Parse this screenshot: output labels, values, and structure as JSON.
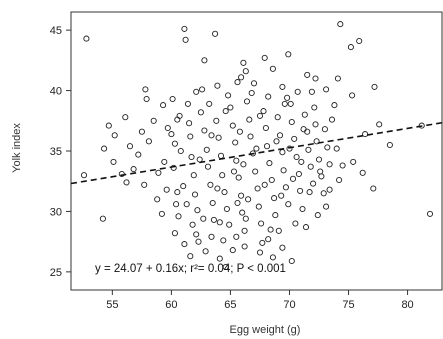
{
  "chart_data": {
    "type": "scatter",
    "xlabel": "Egg weight (g)",
    "ylabel": "Yolk index",
    "xlim": [
      51.5,
      83
    ],
    "ylim": [
      23.5,
      46.5
    ],
    "x_ticks": [
      55,
      60,
      65,
      70,
      75,
      80
    ],
    "y_ticks": [
      25,
      30,
      35,
      40,
      45
    ],
    "grid": false,
    "legend": "none",
    "marker": "open-circle",
    "trendline": {
      "style": "dashed",
      "intercept": 24.07,
      "slope": 0.16,
      "equation_text": "y = 24.07 + 0.16x; r²= 0.04; P < 0.001"
    },
    "colors": {
      "marker_stroke": "#222222",
      "trendline": "#111111",
      "axis": "#333333"
    },
    "series": [
      {
        "points": [
          [
            52.8,
            44.3
          ],
          [
            61.1,
            45.1
          ],
          [
            61.2,
            44.2
          ],
          [
            63.7,
            44.7
          ],
          [
            74.3,
            45.5
          ],
          [
            75.9,
            44.1
          ],
          [
            75.2,
            43.6
          ],
          [
            69.9,
            43.0
          ],
          [
            67.9,
            42.7
          ],
          [
            66.1,
            42.3
          ],
          [
            62.8,
            42.5
          ],
          [
            71.5,
            41.3
          ],
          [
            72.2,
            41.0
          ],
          [
            74.1,
            41.0
          ],
          [
            77.2,
            40.3
          ],
          [
            66.3,
            41.6
          ],
          [
            57.8,
            40.1
          ],
          [
            57.9,
            39.3
          ],
          [
            59.3,
            38.8
          ],
          [
            60.1,
            39.3
          ],
          [
            62.1,
            39.9
          ],
          [
            63.9,
            40.4
          ],
          [
            65.6,
            40.7
          ],
          [
            69.4,
            40.3
          ],
          [
            73.1,
            40.1
          ],
          [
            75.3,
            39.6
          ],
          [
            54.7,
            37.1
          ],
          [
            55.2,
            36.3
          ],
          [
            56.5,
            35.4
          ],
          [
            54.3,
            35.2
          ],
          [
            55.1,
            34.1
          ],
          [
            56.8,
            33.5
          ],
          [
            55.8,
            33.1
          ],
          [
            56.2,
            32.4
          ],
          [
            54.2,
            29.4
          ],
          [
            52.6,
            33.0
          ],
          [
            57.7,
            32.2
          ],
          [
            58.8,
            31.0
          ],
          [
            59.2,
            29.8
          ],
          [
            59.4,
            34.1
          ],
          [
            58.1,
            35.8
          ],
          [
            59.7,
            36.9
          ],
          [
            60.5,
            37.6
          ],
          [
            60.3,
            35.6
          ],
          [
            60.2,
            33.6
          ],
          [
            60.5,
            31.6
          ],
          [
            60.6,
            29.6
          ],
          [
            60.3,
            28.2
          ],
          [
            61.1,
            27.3
          ],
          [
            61.6,
            26.3
          ],
          [
            62.3,
            27.5
          ],
          [
            62.9,
            26.7
          ],
          [
            63.4,
            27.9
          ],
          [
            64.1,
            26.1
          ],
          [
            64.6,
            25.4
          ],
          [
            65.2,
            26.8
          ],
          [
            66.2,
            27.1
          ],
          [
            67.5,
            26.6
          ],
          [
            68.2,
            27.7
          ],
          [
            68.6,
            26.2
          ],
          [
            69.1,
            28.4
          ],
          [
            70.5,
            29.0
          ],
          [
            70.2,
            25.9
          ],
          [
            71.4,
            28.7
          ],
          [
            72.4,
            29.7
          ],
          [
            73.4,
            31.8
          ],
          [
            74.2,
            32.6
          ],
          [
            75.4,
            34.1
          ],
          [
            76.2,
            33.2
          ],
          [
            77.1,
            31.9
          ],
          [
            76.4,
            36.4
          ],
          [
            77.6,
            37.2
          ],
          [
            78.5,
            35.5
          ],
          [
            81.2,
            37.1
          ],
          [
            81.9,
            29.8
          ],
          [
            61.6,
            36.2
          ],
          [
            61.7,
            34.5
          ],
          [
            61.9,
            33.0
          ],
          [
            62.0,
            31.4
          ],
          [
            62.2,
            30.1
          ],
          [
            62.5,
            38.2
          ],
          [
            62.8,
            36.7
          ],
          [
            63.0,
            35.1
          ],
          [
            63.1,
            33.7
          ],
          [
            63.3,
            32.2
          ],
          [
            63.5,
            30.7
          ],
          [
            63.6,
            29.3
          ],
          [
            63.8,
            37.5
          ],
          [
            64.0,
            36.1
          ],
          [
            64.2,
            34.6
          ],
          [
            64.3,
            33.0
          ],
          [
            64.5,
            31.6
          ],
          [
            64.7,
            30.2
          ],
          [
            64.9,
            28.9
          ],
          [
            65.0,
            38.6
          ],
          [
            65.2,
            37.1
          ],
          [
            65.4,
            35.7
          ],
          [
            65.5,
            34.2
          ],
          [
            65.7,
            32.8
          ],
          [
            65.9,
            31.3
          ],
          [
            66.0,
            29.9
          ],
          [
            66.2,
            28.4
          ],
          [
            66.4,
            39.1
          ],
          [
            66.6,
            37.6
          ],
          [
            66.7,
            36.2
          ],
          [
            66.9,
            34.8
          ],
          [
            67.1,
            33.3
          ],
          [
            67.3,
            31.9
          ],
          [
            67.4,
            30.4
          ],
          [
            67.6,
            29.0
          ],
          [
            67.8,
            38.3
          ],
          [
            68.0,
            36.9
          ],
          [
            68.1,
            35.4
          ],
          [
            68.3,
            34.0
          ],
          [
            68.5,
            32.6
          ],
          [
            68.7,
            31.1
          ],
          [
            68.8,
            29.7
          ],
          [
            69.0,
            37.8
          ],
          [
            69.2,
            36.3
          ],
          [
            69.4,
            34.9
          ],
          [
            69.5,
            33.4
          ],
          [
            69.7,
            32.0
          ],
          [
            69.9,
            30.6
          ],
          [
            70.1,
            38.9
          ],
          [
            70.2,
            37.4
          ],
          [
            70.4,
            36.0
          ],
          [
            70.6,
            34.5
          ],
          [
            70.8,
            33.1
          ],
          [
            70.9,
            31.7
          ],
          [
            71.1,
            30.2
          ],
          [
            71.3,
            38.0
          ],
          [
            71.5,
            36.6
          ],
          [
            71.6,
            35.1
          ],
          [
            71.8,
            33.7
          ],
          [
            72.0,
            32.3
          ],
          [
            72.2,
            37.2
          ],
          [
            72.3,
            35.8
          ],
          [
            72.5,
            34.3
          ],
          [
            72.7,
            32.9
          ],
          [
            72.9,
            31.5
          ],
          [
            73.0,
            36.8
          ],
          [
            73.2,
            35.3
          ],
          [
            73.4,
            33.9
          ],
          [
            60.8,
            35.0
          ],
          [
            61.0,
            32.1
          ],
          [
            61.3,
            30.6
          ],
          [
            61.4,
            38.9
          ],
          [
            61.8,
            28.9
          ],
          [
            62.4,
            34.3
          ],
          [
            62.7,
            29.4
          ],
          [
            63.2,
            38.9
          ],
          [
            63.9,
            31.9
          ],
          [
            64.4,
            27.6
          ],
          [
            64.8,
            39.6
          ],
          [
            65.3,
            33.3
          ],
          [
            65.6,
            30.7
          ],
          [
            65.8,
            36.6
          ],
          [
            66.1,
            33.9
          ],
          [
            66.5,
            31.0
          ],
          [
            66.8,
            39.8
          ],
          [
            67.2,
            35.2
          ],
          [
            67.5,
            37.9
          ],
          [
            67.9,
            32.2
          ],
          [
            68.2,
            39.5
          ],
          [
            68.4,
            28.5
          ],
          [
            68.9,
            35.8
          ],
          [
            69.3,
            31.3
          ],
          [
            69.6,
            38.9
          ],
          [
            70.0,
            35.2
          ],
          [
            70.3,
            32.7
          ],
          [
            70.7,
            39.9
          ],
          [
            71.0,
            34.1
          ],
          [
            71.2,
            36.8
          ],
          [
            71.7,
            31.6
          ],
          [
            72.1,
            38.6
          ],
          [
            72.6,
            33.3
          ],
          [
            73.1,
            30.4
          ],
          [
            73.6,
            37.6
          ],
          [
            74.0,
            35.2
          ],
          [
            74.5,
            33.8
          ],
          [
            58.5,
            37.5
          ],
          [
            58.9,
            33.2
          ],
          [
            59.6,
            31.8
          ],
          [
            60.0,
            36.4
          ],
          [
            60.4,
            30.6
          ],
          [
            60.7,
            37.9
          ],
          [
            61.5,
            37.3
          ],
          [
            62.6,
            40.1
          ],
          [
            63.4,
            36.3
          ],
          [
            64.6,
            38.3
          ],
          [
            65.9,
            41.1
          ],
          [
            67.0,
            40.6
          ],
          [
            68.6,
            41.8
          ],
          [
            69.8,
            39.4
          ],
          [
            71.9,
            39.9
          ],
          [
            73.8,
            38.8
          ],
          [
            57.2,
            34.7
          ],
          [
            57.5,
            36.6
          ],
          [
            56.1,
            37.8
          ],
          [
            66.3,
            29.4
          ],
          [
            67.7,
            27.4
          ],
          [
            64.1,
            29.1
          ],
          [
            69.4,
            27.0
          ],
          [
            62.1,
            28.1
          ],
          [
            65.5,
            27.9
          ]
        ]
      }
    ]
  }
}
